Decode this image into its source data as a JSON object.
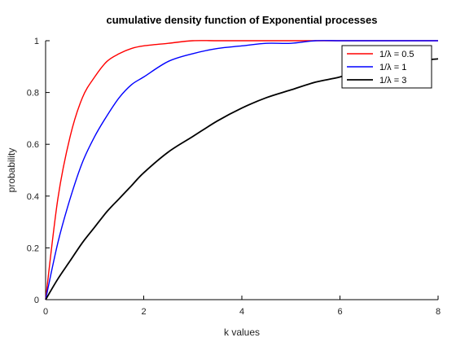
{
  "chart_data": {
    "type": "line",
    "title": "cumulative density function of Exponential processes",
    "xlabel": "k values",
    "ylabel": "probability",
    "xlim": [
      0,
      8
    ],
    "ylim": [
      0,
      1
    ],
    "xticks": [
      0,
      2,
      4,
      6,
      8
    ],
    "yticks": [
      0,
      0.2,
      0.4,
      0.6,
      0.8,
      1
    ],
    "xtick_labels": [
      "0",
      "2",
      "4",
      "6",
      "8"
    ],
    "ytick_labels": [
      "0",
      "0.2",
      "0.4",
      "0.6",
      "0.8",
      "1"
    ],
    "grid": false,
    "legend_position": "top-right",
    "x": [
      0,
      0.25,
      0.5,
      0.75,
      1,
      1.25,
      1.5,
      1.75,
      2,
      2.5,
      3,
      3.5,
      4,
      4.5,
      5,
      5.5,
      6,
      6.5,
      7,
      7.5,
      8
    ],
    "series": [
      {
        "name": "1/λ = 0.5",
        "color": "#ff0000",
        "values": [
          0,
          0.39,
          0.63,
          0.78,
          0.86,
          0.92,
          0.95,
          0.97,
          0.98,
          0.99,
          1.0,
          1.0,
          1.0,
          1.0,
          1.0,
          1.0,
          1.0,
          1.0,
          1.0,
          1.0,
          1.0
        ]
      },
      {
        "name": "1/λ = 1",
        "color": "#0000ff",
        "values": [
          0,
          0.22,
          0.39,
          0.53,
          0.63,
          0.71,
          0.78,
          0.83,
          0.86,
          0.92,
          0.95,
          0.97,
          0.98,
          0.99,
          0.99,
          1.0,
          1.0,
          1.0,
          1.0,
          1.0,
          1.0
        ]
      },
      {
        "name": "1/λ = 3",
        "color": "#000000",
        "values": [
          0,
          0.08,
          0.15,
          0.22,
          0.28,
          0.34,
          0.39,
          0.44,
          0.49,
          0.57,
          0.63,
          0.69,
          0.74,
          0.78,
          0.81,
          0.84,
          0.86,
          0.89,
          0.9,
          0.92,
          0.93
        ]
      }
    ]
  }
}
